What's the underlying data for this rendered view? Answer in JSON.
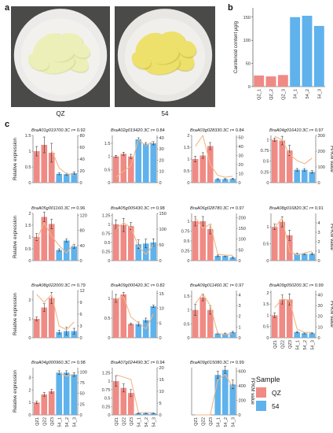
{
  "panels": {
    "a": "a",
    "b": "b",
    "c": "c"
  },
  "photos": [
    {
      "label": "QZ",
      "plate_color": "#ecebe9",
      "curd_color": "#ecf0b8",
      "curd_shadow": "#cfd68a"
    },
    {
      "label": "54",
      "plate_color": "#e8e7e4",
      "curd_color": "#ede16c",
      "curd_shadow": "#c8b83a"
    }
  ],
  "colors": {
    "qz": "#f08a84",
    "s54": "#5fb2ec",
    "fpkm_line": "#f3b685",
    "axis": "#333333"
  },
  "legend": {
    "title": "Sample",
    "items": [
      {
        "label": "QZ",
        "color": "#f08a84"
      },
      {
        "label": "54",
        "color": "#5fb2ec"
      }
    ]
  },
  "shared_axis_labels": {
    "left": "Relative expression",
    "right": "FPKM value"
  },
  "chart_data": [
    {
      "id": "carotenoid",
      "type": "bar",
      "title": "",
      "ylabel": "Carotenoid content μg/g",
      "categories": [
        "QZ_1",
        "QZ_2",
        "QZ_3",
        "54_1",
        "54_2",
        "54_3"
      ],
      "values": [
        24,
        22,
        25,
        150,
        153,
        131
      ],
      "ylim": [
        0,
        170
      ],
      "yticks": [
        0,
        50,
        100,
        150
      ],
      "grid": false
    },
    {
      "id": "expression",
      "type": "bar",
      "categories": [
        "QZ1",
        "QZ2",
        "QZ3",
        "54_1",
        "54_2",
        "54_3"
      ],
      "panels": [
        {
          "gene": "BraA01g019700.3C",
          "r": "r= 0.92",
          "rel": [
            1.0,
            1.2,
            0.95,
            0.28,
            0.27,
            0.3
          ],
          "err": [
            0.15,
            0.25,
            0.3,
            0.03,
            0.03,
            0.04
          ],
          "yl": [
            0,
            1.5
          ],
          "ylt": [
            0.0,
            0.5,
            1.0,
            1.5
          ],
          "fpkm": [
            null,
            null,
            55,
            25,
            15,
            13
          ],
          "yr": [
            0,
            80
          ],
          "yrt": [
            0,
            20,
            40,
            60,
            80
          ],
          "show_y": true,
          "show_r": false,
          "show_x": false
        },
        {
          "gene": "BraA02g019420.3C",
          "r": "r= 0.84",
          "rel": [
            1.0,
            1.1,
            1.0,
            1.65,
            1.48,
            1.5
          ],
          "err": [
            0.04,
            0.06,
            0.08,
            0.06,
            0.05,
            0.06
          ],
          "yl": [
            0,
            1.8
          ],
          "ylt": [
            0.0,
            0.5,
            1.0,
            1.5
          ],
          "fpkm": [
            5,
            10,
            15,
            38,
            33,
            37
          ],
          "yr": [
            0,
            42
          ],
          "yrt": [
            0,
            10,
            20,
            30,
            40
          ],
          "show_y": false,
          "show_r": false,
          "show_x": false
        },
        {
          "gene": "BraA03g028330.3C",
          "r": "r= 0.84",
          "rel": [
            1.0,
            1.15,
            1.55,
            0.15,
            0.15,
            0.16
          ],
          "err": [
            0.12,
            0.12,
            0.15,
            0.02,
            0.02,
            0.02
          ],
          "yl": [
            0,
            2.0
          ],
          "ylt": [
            0.0,
            0.5,
            1.0,
            1.5,
            2.0
          ],
          "fpkm": [
            40,
            52,
            20,
            8,
            6,
            7
          ],
          "yr": [
            0,
            52
          ],
          "yrt": [
            0,
            10,
            20,
            30,
            40,
            50
          ],
          "show_y": false,
          "show_r": false,
          "show_x": false
        },
        {
          "gene": "BraA04g016410.3C",
          "r": "r= 0.97",
          "rel": [
            1.0,
            0.98,
            0.75,
            0.3,
            0.3,
            0.25
          ],
          "err": [
            0.04,
            0.1,
            0.12,
            0.03,
            0.03,
            0.03
          ],
          "yl": [
            0,
            1.1
          ],
          "ylt": [
            0.0,
            0.25,
            0.5,
            0.75,
            1.0
          ],
          "fpkm": [
            295,
            270,
            180,
            140,
            120,
            155
          ],
          "yr": [
            0,
            300
          ],
          "yrt": [
            0,
            100,
            200,
            300
          ],
          "show_y": false,
          "show_r": true,
          "show_x": false
        },
        {
          "gene": "BraA05g001160.3C",
          "r": "r= 0.96",
          "rel": [
            1.0,
            1.85,
            1.55,
            0.45,
            0.85,
            0.6
          ],
          "err": [
            0.15,
            0.2,
            0.2,
            0.05,
            0.06,
            0.08
          ],
          "yl": [
            0,
            2.0
          ],
          "ylt": [
            0.0,
            0.5,
            1.0,
            1.5,
            2.0
          ],
          "fpkm": [
            55,
            100,
            65,
            40,
            20,
            45
          ],
          "yr": [
            0,
            125
          ],
          "yrt": [
            0,
            40,
            80,
            120
          ],
          "show_y": true,
          "show_r": false,
          "show_x": false
        },
        {
          "gene": "BraA05g005430.3C",
          "r": "r= 0.98",
          "rel": [
            1.0,
            0.98,
            0.95,
            0.45,
            0.47,
            0.5
          ],
          "err": [
            0.12,
            0.18,
            0.1,
            0.12,
            0.12,
            0.1
          ],
          "yl": [
            0,
            1.3
          ],
          "ylt": [
            0.0,
            0.25,
            0.5,
            0.75,
            1.0,
            1.25
          ],
          "fpkm": [
            100,
            120,
            105,
            45,
            20,
            50
          ],
          "yr": [
            0,
            150
          ],
          "yrt": [
            0,
            50,
            100,
            150
          ],
          "show_y": false,
          "show_r": false,
          "show_x": false
        },
        {
          "gene": "BraA06g028780.3C",
          "r": "r= 0.97",
          "rel": [
            1.0,
            1.0,
            0.8,
            0.12,
            0.12,
            0.08
          ],
          "err": [
            0.12,
            0.12,
            0.12,
            0.02,
            0.02,
            0.02
          ],
          "yl": [
            0,
            1.2
          ],
          "ylt": [
            0.0,
            0.25,
            0.5,
            0.75,
            1.0
          ],
          "fpkm": [
            200,
            150,
            170,
            30,
            25,
            25
          ],
          "yr": [
            0,
            220
          ],
          "yrt": [
            0,
            50,
            100,
            150,
            200
          ],
          "show_y": false,
          "show_r": false,
          "show_x": false
        },
        {
          "gene": "BraA08g016820.3C",
          "r": "r= 0.91",
          "rel": [
            1.0,
            1.15,
            0.75,
            0.2,
            0.2,
            0.2
          ],
          "err": [
            0.08,
            0.15,
            0.15,
            0.02,
            0.02,
            0.03
          ],
          "yl": [
            0,
            1.4
          ],
          "ylt": [
            0.0,
            0.5,
            1.0
          ],
          "fpkm": [
            3.5,
            4.5,
            1.0,
            0.6,
            0.8,
            1.0
          ],
          "yr": [
            0,
            5
          ],
          "yrt": [
            0,
            1,
            2,
            3,
            4
          ],
          "show_y": false,
          "show_r": true,
          "show_x": false
        },
        {
          "gene": "BraA08g022000.3C",
          "r": "r= 0.79",
          "rel": [
            1.0,
            1.6,
            2.1,
            0.3,
            0.35,
            0.35
          ],
          "err": [
            0.1,
            0.2,
            0.3,
            0.1,
            0.2,
            0.15
          ],
          "yl": [
            0,
            2.5
          ],
          "ylt": [
            0,
            1,
            2
          ],
          "fpkm": [
            11,
            9,
            11,
            3,
            2,
            4
          ],
          "yr": [
            0,
            12
          ],
          "yrt": [
            0,
            3,
            6,
            9,
            12
          ],
          "show_y": true,
          "show_r": false,
          "show_x": false
        },
        {
          "gene": "BraA09g000420.3C",
          "r": "r= 0.82",
          "rel": [
            1.0,
            1.1,
            0.35,
            0.35,
            0.45,
            0.8
          ],
          "err": [
            0.1,
            0.05,
            0.02,
            0.05,
            0.05,
            0.03
          ],
          "yl": [
            0,
            1.2
          ],
          "ylt": [
            0.0,
            0.5,
            1.0
          ],
          "fpkm": [
            13,
            14,
            7,
            5,
            3,
            8
          ],
          "yr": [
            0,
            16
          ],
          "yrt": [
            0,
            5,
            10,
            15
          ],
          "show_y": false,
          "show_r": false,
          "show_x": false
        },
        {
          "gene": "BraA09g011460.3C",
          "r": "r= 0.97",
          "rel": [
            1.0,
            1.45,
            1.0,
            0.15,
            0.15,
            0.2
          ],
          "err": [
            0.2,
            0.12,
            0.15,
            0.02,
            0.02,
            0.03
          ],
          "yl": [
            0,
            1.7
          ],
          "ylt": [
            0.0,
            0.5,
            1.0,
            1.5
          ],
          "fpkm": [
            3.2,
            4.1,
            3.0,
            0.4,
            0.3,
            0.4
          ],
          "yr": [
            0,
            4.4
          ],
          "yrt": [
            0,
            1,
            2,
            3,
            4
          ],
          "show_y": false,
          "show_r": false,
          "show_x": false
        },
        {
          "gene": "BraA09g050200.3C",
          "r": "r= 0.99",
          "rel": [
            1.0,
            1.7,
            1.7,
            0.25,
            0.2,
            0.2
          ],
          "err": [
            0.1,
            0.2,
            0.25,
            0.03,
            0.03,
            0.02
          ],
          "yl": [
            0,
            2.1
          ],
          "ylt": [
            0.0,
            0.5,
            1.0,
            1.5,
            2.0
          ],
          "fpkm": [
            28,
            36,
            35,
            8,
            5,
            5
          ],
          "yr": [
            0,
            44
          ],
          "yrt": [
            0,
            10,
            20,
            30,
            40
          ],
          "show_y": false,
          "show_r": true,
          "show_x": true
        },
        {
          "gene": "BraA04g000960.3C",
          "r": "r= 0.98",
          "rel": [
            1.0,
            1.65,
            1.9,
            3.4,
            3.4,
            3.25
          ],
          "err": [
            0.1,
            0.15,
            0.15,
            0.15,
            0.15,
            0.15
          ],
          "yl": [
            0,
            3.8
          ],
          "ylt": [
            0,
            1,
            2,
            3
          ],
          "fpkm": [
            null,
            null,
            null,
            98,
            90,
            95
          ],
          "yr": [
            0,
            110
          ],
          "yrt": [
            0,
            25,
            50,
            75,
            100
          ],
          "show_y": true,
          "show_r": false,
          "show_x": true
        },
        {
          "gene": "BraA07g024490.3C",
          "r": "r= 0.94",
          "rel": [
            1.0,
            0.8,
            0.65,
            0.05,
            0.05,
            0.05
          ],
          "err": [
            0.15,
            0.12,
            0.1,
            0.01,
            0.01,
            0.01
          ],
          "yl": [
            0,
            1.4
          ],
          "ylt": [
            0.0,
            0.25,
            0.5,
            0.75,
            1.0,
            1.25
          ],
          "fpkm": [
            17,
            16,
            15,
            1,
            1,
            1
          ],
          "yr": [
            0,
            20
          ],
          "yrt": [
            0,
            5,
            10,
            15,
            20
          ],
          "show_y": false,
          "show_r": false,
          "show_x": true
        },
        {
          "gene": "BraA09g015080.3C",
          "r": "r= 0.99",
          "rel": [
            0.0,
            0.0,
            0.0,
            55,
            62,
            42
          ],
          "err": [
            0,
            0,
            0,
            5,
            5,
            6
          ],
          "yl": [
            0,
            65
          ],
          "ylt": [],
          "fpkm": [
            0,
            0,
            0,
            480,
            560,
            380
          ],
          "yr": [
            0,
            650
          ],
          "yrt": [
            0,
            200,
            400,
            600
          ],
          "show_y": false,
          "show_r": true,
          "show_x": true
        }
      ]
    }
  ]
}
